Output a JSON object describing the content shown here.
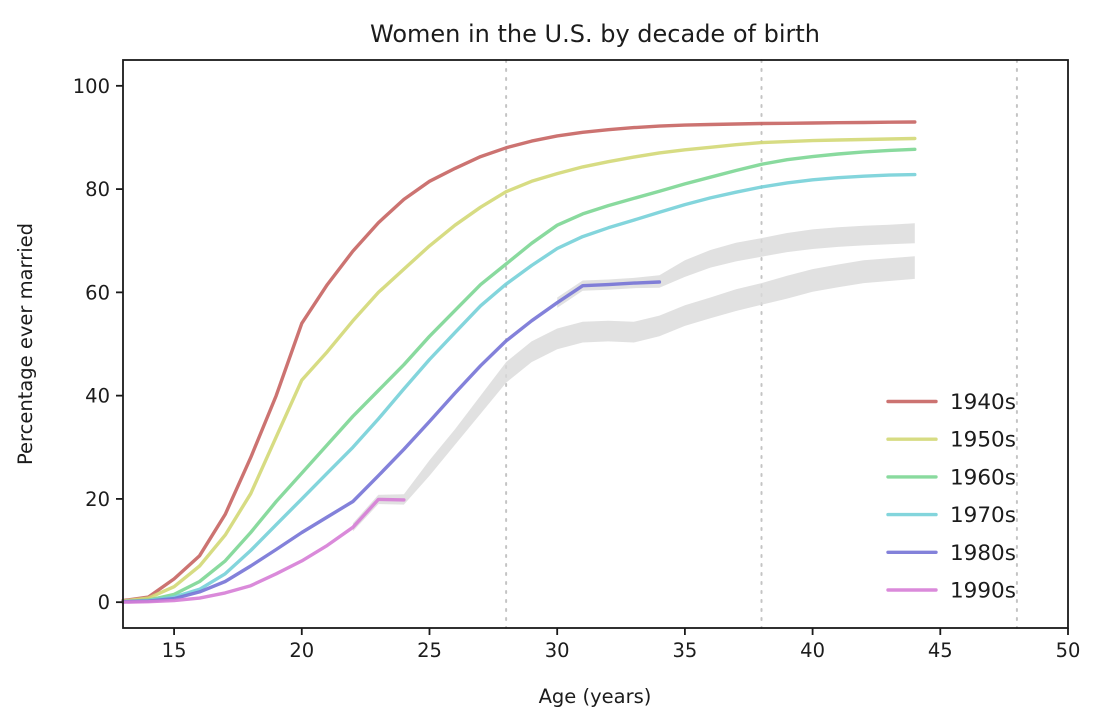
{
  "figure": {
    "title": "Women in the U.S. by decade of birth",
    "xlabel": "Age (years)",
    "ylabel": "Percentage ever married"
  },
  "chart_data": {
    "type": "line",
    "title": "Women in the U.S. by decade of birth",
    "xlabel": "Age (years)",
    "ylabel": "Percentage ever married",
    "xlim": [
      13,
      50
    ],
    "ylim": [
      -5,
      105
    ],
    "x_ticks": [
      15,
      20,
      25,
      30,
      35,
      40,
      45,
      50
    ],
    "y_ticks": [
      0,
      20,
      40,
      60,
      80,
      100
    ],
    "grid": false,
    "legend_position": "lower right",
    "axis_color": "#1a1a1a",
    "vlines": {
      "ages": [
        28,
        38,
        48
      ],
      "style": "dotted",
      "color": "#c4c4c4"
    },
    "band_color": "#d9d9d9",
    "series": [
      {
        "name": "1940s",
        "color": "#c66462",
        "ages": [
          13,
          14,
          15,
          16,
          17,
          18,
          19,
          20,
          21,
          22,
          23,
          24,
          25,
          26,
          27,
          28,
          29,
          30,
          31,
          32,
          33,
          34,
          35,
          36,
          37,
          38,
          39,
          40,
          41,
          42,
          43,
          44
        ],
        "values": [
          0.3,
          1,
          4.5,
          9,
          17,
          28,
          40,
          54,
          61.5,
          68,
          73.5,
          78,
          81.5,
          84,
          86.3,
          88,
          89.3,
          90.3,
          91,
          91.5,
          91.9,
          92.2,
          92.4,
          92.5,
          92.6,
          92.7,
          92.75,
          92.8,
          92.85,
          92.9,
          92.95,
          93
        ]
      },
      {
        "name": "1950s",
        "color": "#d3d876",
        "ages": [
          13,
          14,
          15,
          16,
          17,
          18,
          19,
          20,
          21,
          22,
          23,
          24,
          25,
          26,
          27,
          28,
          29,
          30,
          31,
          32,
          33,
          34,
          35,
          36,
          37,
          38,
          39,
          40,
          41,
          42,
          43,
          44
        ],
        "values": [
          0.2,
          0.8,
          3,
          7,
          13,
          21,
          32,
          43,
          48.5,
          54.5,
          60,
          64.5,
          69,
          73,
          76.5,
          79.5,
          81.5,
          83,
          84.3,
          85.3,
          86.2,
          87,
          87.6,
          88.1,
          88.6,
          89,
          89.2,
          89.4,
          89.5,
          89.6,
          89.7,
          89.8
        ]
      },
      {
        "name": "1960s",
        "color": "#7cd694",
        "ages": [
          13,
          14,
          15,
          16,
          17,
          18,
          19,
          20,
          21,
          22,
          23,
          24,
          25,
          26,
          27,
          28,
          29,
          30,
          31,
          32,
          33,
          34,
          35,
          36,
          37,
          38,
          39,
          40,
          41,
          42,
          43,
          44
        ],
        "values": [
          0.1,
          0.4,
          1.5,
          4,
          8,
          13.5,
          19.5,
          25,
          30.5,
          36,
          41,
          46,
          51.5,
          56.5,
          61.5,
          65.5,
          69.5,
          73,
          75.2,
          76.8,
          78.2,
          79.6,
          81,
          82.3,
          83.6,
          84.8,
          85.7,
          86.3,
          86.8,
          87.2,
          87.5,
          87.7
        ]
      },
      {
        "name": "1970s",
        "color": "#76d0d8",
        "ages": [
          13,
          14,
          15,
          16,
          17,
          18,
          19,
          20,
          21,
          22,
          23,
          24,
          25,
          26,
          27,
          28,
          29,
          30,
          31,
          32,
          33,
          34,
          35,
          36,
          37,
          38,
          39,
          40,
          41,
          42,
          43,
          44
        ],
        "values": [
          0.1,
          0.3,
          1,
          2.5,
          5.5,
          10,
          15,
          20,
          25,
          30,
          35.5,
          41.3,
          47,
          52.2,
          57.4,
          61.6,
          65.2,
          68.5,
          70.8,
          72.5,
          74,
          75.5,
          77,
          78.3,
          79.4,
          80.4,
          81.2,
          81.8,
          82.2,
          82.5,
          82.7,
          82.8
        ]
      },
      {
        "name": "1980s",
        "color": "#7673d6",
        "ages": [
          13,
          14,
          15,
          16,
          17,
          18,
          19,
          20,
          21,
          22,
          23,
          24,
          25,
          26,
          27,
          28,
          29,
          30,
          31,
          32,
          33,
          34
        ],
        "values": [
          0.1,
          0.2,
          0.7,
          2,
          4,
          7,
          10.2,
          13.5,
          16.5,
          19.5,
          24.5,
          29.6,
          35,
          40.5,
          45.8,
          50.6,
          54.5,
          58,
          61.3,
          61.5,
          61.8,
          62
        ]
      },
      {
        "name": "1990s",
        "color": "#d67dd6",
        "ages": [
          13,
          14,
          15,
          16,
          17,
          18,
          19,
          20,
          21,
          22,
          23,
          24
        ],
        "values": [
          0,
          0.1,
          0.3,
          0.8,
          1.8,
          3.2,
          5.5,
          8,
          11,
          14.5,
          19.9,
          19.8
        ]
      }
    ],
    "projection_bands": [
      {
        "for": "1980s",
        "points": [
          [
            30,
            57,
            59
          ],
          [
            31,
            60.3,
            62.3
          ],
          [
            32,
            60.5,
            62.5
          ],
          [
            33,
            60.8,
            62.8
          ],
          [
            34,
            60.9,
            63.3
          ],
          [
            35,
            63,
            66.2
          ],
          [
            36,
            64.8,
            68.2
          ],
          [
            37,
            66,
            69.6
          ],
          [
            38,
            66.9,
            70.5
          ],
          [
            39,
            67.8,
            71.5
          ],
          [
            40,
            68.4,
            72.2
          ],
          [
            41,
            68.8,
            72.6
          ],
          [
            42,
            69.1,
            72.9
          ],
          [
            43,
            69.3,
            73.1
          ],
          [
            44,
            69.5,
            73.4
          ]
        ]
      },
      {
        "for": "1990s",
        "points": [
          [
            22,
            13.7,
            15.3
          ],
          [
            23,
            19,
            20.8
          ],
          [
            24,
            18.9,
            20.9
          ],
          [
            25,
            24.5,
            27.5
          ],
          [
            26,
            30.5,
            33.5
          ],
          [
            27,
            36.5,
            40
          ],
          [
            28,
            42.5,
            46.5
          ],
          [
            29,
            46.5,
            50.5
          ],
          [
            30,
            49,
            53
          ],
          [
            31,
            50.3,
            54.3
          ],
          [
            32,
            50.5,
            54.5
          ],
          [
            33,
            50.3,
            54.3
          ],
          [
            34,
            51.5,
            55.5
          ],
          [
            35,
            53.5,
            57.5
          ],
          [
            36,
            55,
            59
          ],
          [
            37,
            56.4,
            60.6
          ],
          [
            38,
            57.6,
            61.8
          ],
          [
            39,
            58.8,
            63.2
          ],
          [
            40,
            60.1,
            64.5
          ],
          [
            41,
            61,
            65.4
          ],
          [
            42,
            61.8,
            66.2
          ],
          [
            43,
            62.2,
            66.6
          ],
          [
            44,
            62.6,
            67
          ]
        ]
      }
    ]
  },
  "legend": {
    "entries": [
      {
        "label": "1940s",
        "color": "#c66462"
      },
      {
        "label": "1950s",
        "color": "#d3d876"
      },
      {
        "label": "1960s",
        "color": "#7cd694"
      },
      {
        "label": "1970s",
        "color": "#76d0d8"
      },
      {
        "label": "1980s",
        "color": "#7673d6"
      },
      {
        "label": "1990s",
        "color": "#d67dd6"
      }
    ]
  }
}
